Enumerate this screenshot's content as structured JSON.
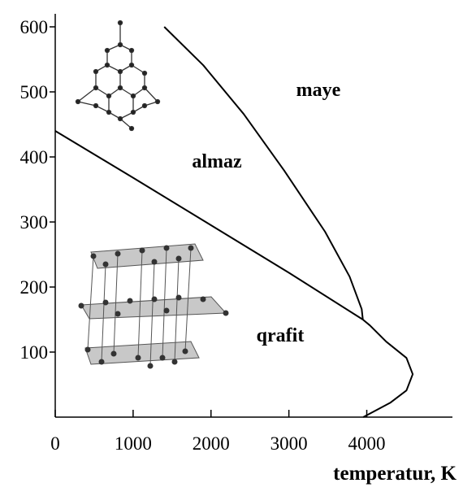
{
  "chart_data": {
    "type": "line",
    "xlabel": "temperatur, K",
    "annotations": [
      "maye",
      "almaz",
      "qrafit"
    ],
    "xlim": [
      0,
      5100
    ],
    "ylim": [
      0,
      620
    ],
    "xticks": [
      0,
      1000,
      2000,
      3000,
      4000
    ],
    "yticks": [
      100,
      200,
      300,
      400,
      500,
      600
    ],
    "series": [
      {
        "color": "#000000",
        "x": [
          0,
          1000,
          2000,
          3000,
          3950
        ],
        "values": [
          440,
          368,
          295,
          222,
          150
        ]
      },
      {
        "color": "#000000",
        "x": [
          1400,
          1900,
          2420,
          2940,
          3465,
          3780,
          3935,
          3950
        ],
        "values": [
          600,
          541,
          466,
          379,
          285,
          216,
          166,
          150
        ]
      },
      {
        "color": "#000000",
        "x": [
          3950,
          4040,
          4250,
          4510,
          4590,
          4510,
          4300,
          3955
        ],
        "values": [
          150,
          141,
          116,
          91,
          66,
          41,
          22,
          0
        ]
      }
    ]
  }
}
